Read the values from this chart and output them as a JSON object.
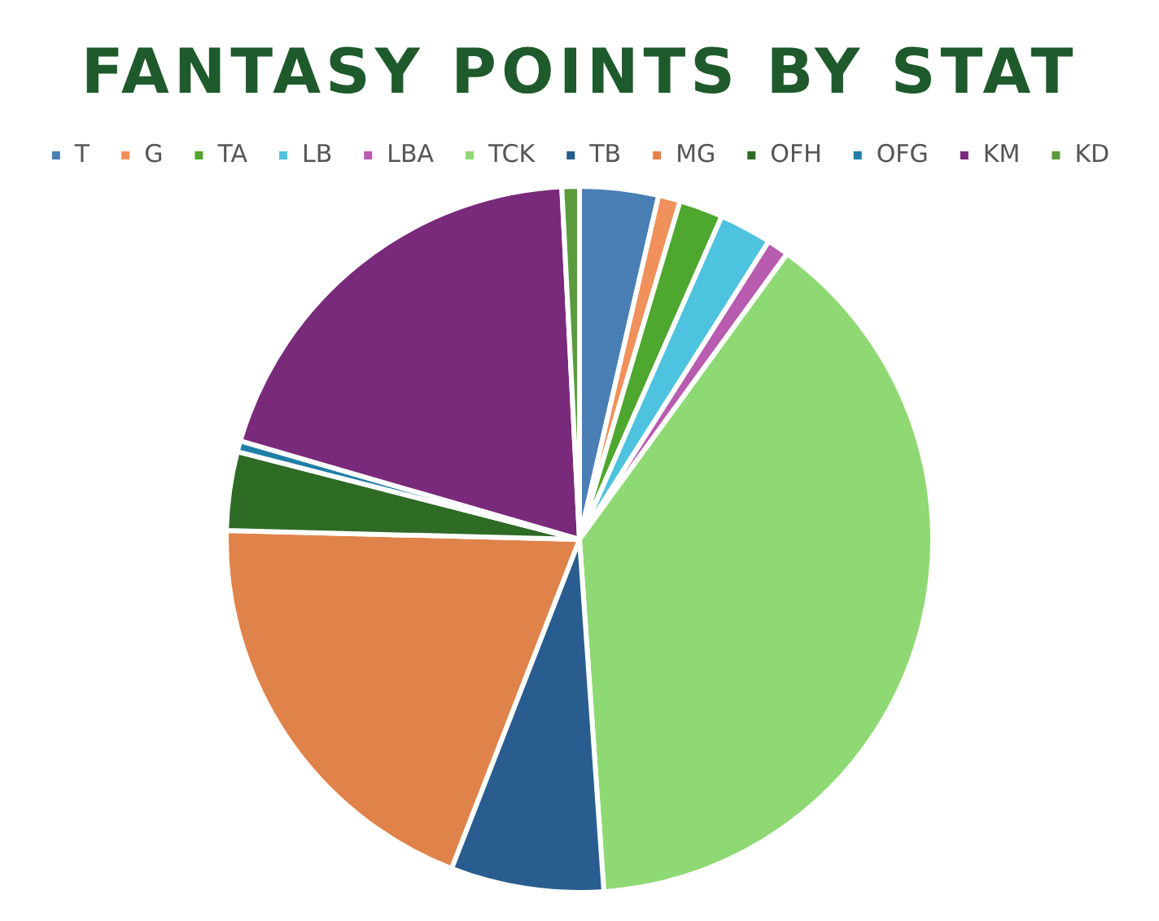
{
  "chart_data": {
    "type": "pie",
    "title": "FANTASY POINTS BY STAT",
    "categories": [
      "T",
      "G",
      "TA",
      "LB",
      "LBA",
      "TCK",
      "TB",
      "MG",
      "OFH",
      "OFG",
      "KM",
      "KD"
    ],
    "values": [
      3.6,
      1,
      2,
      2.4,
      1,
      38.9,
      7,
      19.5,
      3.6,
      0.5,
      19.7,
      0.8
    ],
    "colors": [
      "#4a7fb5",
      "#f0905a",
      "#4ea72e",
      "#4ec3e0",
      "#b85cb0",
      "#8ed973",
      "#2a5d8f",
      "#e0834a",
      "#2e6b25",
      "#1f7fa6",
      "#7a2a7a",
      "#5b9b3e"
    ],
    "legend": "top"
  }
}
